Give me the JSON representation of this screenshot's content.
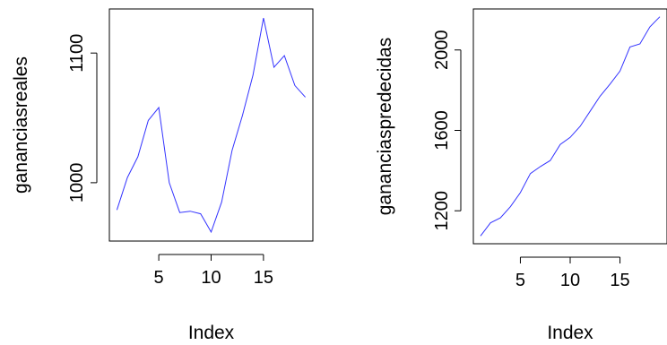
{
  "chart_data": [
    {
      "type": "line",
      "x": [
        1,
        2,
        3,
        4,
        5,
        6,
        7,
        8,
        9,
        10,
        11,
        12,
        13,
        14,
        15,
        16,
        17,
        18,
        19
      ],
      "values": [
        979,
        1004,
        1020,
        1048,
        1058,
        1000,
        977,
        978,
        976,
        962,
        985,
        1025,
        1052,
        1083,
        1127,
        1089,
        1098,
        1075,
        1066
      ],
      "xlabel": "Index",
      "ylabel": "gananciasreales",
      "xticks": [
        "5",
        "10",
        "15"
      ],
      "yticks": [
        "1000",
        "1100"
      ],
      "xlim": [
        0.28,
        19.72
      ],
      "ylim": [
        955,
        1134
      ],
      "line_color": "#3333ff",
      "grid": false
    },
    {
      "type": "line",
      "x": [
        1,
        2,
        3,
        4,
        5,
        6,
        7,
        8,
        9,
        10,
        11,
        12,
        13,
        14,
        15,
        16,
        17,
        18,
        19
      ],
      "values": [
        1075,
        1140,
        1165,
        1220,
        1290,
        1385,
        1420,
        1450,
        1530,
        1565,
        1620,
        1695,
        1770,
        1830,
        1895,
        2015,
        2030,
        2115,
        2165
      ],
      "xlabel": "Index",
      "ylabel": "gananciaspredecidas",
      "xticks": [
        "5",
        "10",
        "15"
      ],
      "yticks": [
        "1200",
        "1600",
        "2000"
      ],
      "xlim": [
        0.28,
        19.72
      ],
      "ylim": [
        1036,
        2204
      ],
      "line_color": "#3333ff",
      "grid": false
    }
  ]
}
